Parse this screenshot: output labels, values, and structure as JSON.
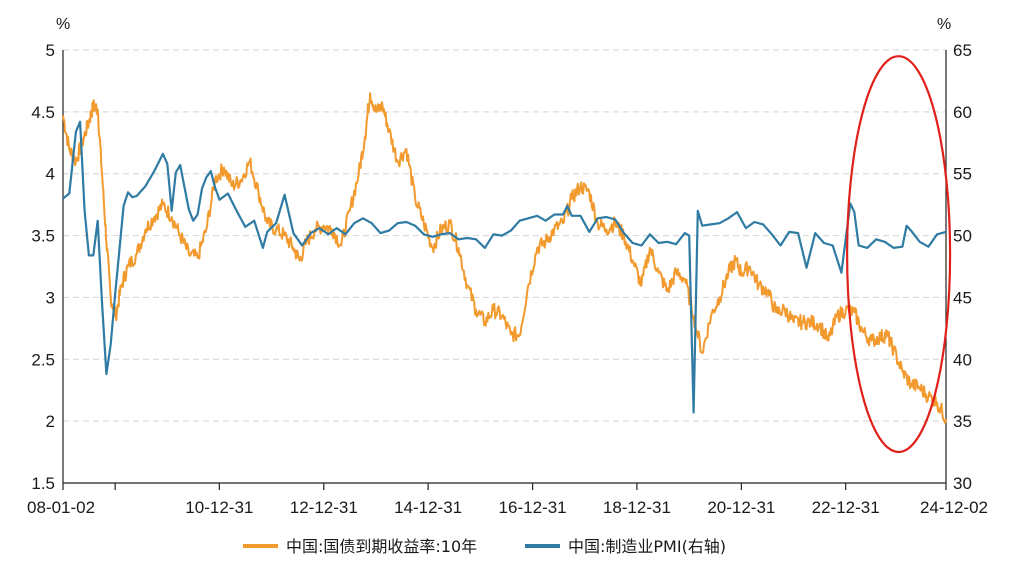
{
  "chart_data": {
    "type": "line",
    "left_axis": {
      "unit": "%",
      "ylim": [
        1.5,
        5
      ],
      "ticks": [
        "5",
        "4.5",
        "4",
        "3.5",
        "3",
        "2.5",
        "2",
        "1.5"
      ],
      "tick_values": [
        5,
        4.5,
        4,
        3.5,
        3,
        2.5,
        2,
        1.5
      ]
    },
    "right_axis": {
      "unit": "%",
      "ylim": [
        30,
        65
      ],
      "ticks": [
        "65",
        "60",
        "55",
        "50",
        "45",
        "40",
        "35",
        "30"
      ],
      "tick_values": [
        65,
        60,
        55,
        50,
        45,
        40,
        35,
        30
      ]
    },
    "x_axis": {
      "range": [
        "2008-01-02",
        "2024-12-02"
      ],
      "ticks": [
        {
          "date": "2008-01-02",
          "label": "08-01-02"
        },
        {
          "date": "2009-01-01",
          "label": ""
        },
        {
          "date": "2010-12-31",
          "label": "10-12-31"
        },
        {
          "date": "2012-12-31",
          "label": "12-12-31"
        },
        {
          "date": "2014-12-31",
          "label": "14-12-31"
        },
        {
          "date": "2016-12-31",
          "label": "16-12-31"
        },
        {
          "date": "2018-12-31",
          "label": "18-12-31"
        },
        {
          "date": "2020-12-31",
          "label": "20-12-31"
        },
        {
          "date": "2022-12-31",
          "label": "22-12-31"
        },
        {
          "date": "2024-12-02",
          "label": "24-12-02"
        }
      ]
    },
    "grid": "horizontal-dashed",
    "legend_position": "bottom",
    "series": [
      {
        "name": "中国:国债到期收益率:10年",
        "axis": "left",
        "color": "#F29A2E",
        "points": [
          [
            "2008-01-02",
            4.47
          ],
          [
            "2008-02-15",
            4.2
          ],
          [
            "2008-04-01",
            4.1
          ],
          [
            "2008-05-15",
            4.25
          ],
          [
            "2008-07-01",
            4.42
          ],
          [
            "2008-08-01",
            4.55
          ],
          [
            "2008-09-01",
            4.52
          ],
          [
            "2008-10-01",
            4.0
          ],
          [
            "2008-11-01",
            3.45
          ],
          [
            "2008-12-01",
            3.0
          ],
          [
            "2009-01-05",
            2.85
          ],
          [
            "2009-02-15",
            3.1
          ],
          [
            "2009-04-01",
            3.25
          ],
          [
            "2009-06-01",
            3.35
          ],
          [
            "2009-08-01",
            3.55
          ],
          [
            "2009-10-01",
            3.65
          ],
          [
            "2009-12-01",
            3.75
          ],
          [
            "2010-02-01",
            3.65
          ],
          [
            "2010-04-01",
            3.5
          ],
          [
            "2010-06-01",
            3.35
          ],
          [
            "2010-08-01",
            3.32
          ],
          [
            "2010-10-01",
            3.55
          ],
          [
            "2010-12-01",
            3.95
          ],
          [
            "2011-02-01",
            4.05
          ],
          [
            "2011-04-01",
            3.9
          ],
          [
            "2011-06-01",
            3.95
          ],
          [
            "2011-08-01",
            4.1
          ],
          [
            "2011-10-01",
            3.85
          ],
          [
            "2011-12-01",
            3.6
          ],
          [
            "2012-02-01",
            3.55
          ],
          [
            "2012-04-01",
            3.5
          ],
          [
            "2012-06-01",
            3.4
          ],
          [
            "2012-07-15",
            3.3
          ],
          [
            "2012-09-01",
            3.45
          ],
          [
            "2012-11-01",
            3.55
          ],
          [
            "2013-01-01",
            3.58
          ],
          [
            "2013-03-01",
            3.55
          ],
          [
            "2013-05-01",
            3.42
          ],
          [
            "2013-07-01",
            3.7
          ],
          [
            "2013-09-01",
            4.0
          ],
          [
            "2013-10-15",
            4.3
          ],
          [
            "2013-11-20",
            4.65
          ],
          [
            "2014-01-01",
            4.5
          ],
          [
            "2014-02-15",
            4.55
          ],
          [
            "2014-04-01",
            4.35
          ],
          [
            "2014-06-01",
            4.1
          ],
          [
            "2014-08-01",
            4.2
          ],
          [
            "2014-10-01",
            3.8
          ],
          [
            "2014-12-01",
            3.6
          ],
          [
            "2015-02-01",
            3.4
          ],
          [
            "2015-04-01",
            3.55
          ],
          [
            "2015-06-01",
            3.6
          ],
          [
            "2015-08-01",
            3.4
          ],
          [
            "2015-10-01",
            3.1
          ],
          [
            "2015-12-01",
            2.9
          ],
          [
            "2016-02-01",
            2.8
          ],
          [
            "2016-04-01",
            2.9
          ],
          [
            "2016-06-01",
            2.85
          ],
          [
            "2016-08-01",
            2.7
          ],
          [
            "2016-10-01",
            2.7
          ],
          [
            "2016-12-01",
            3.1
          ],
          [
            "2017-02-01",
            3.4
          ],
          [
            "2017-04-01",
            3.45
          ],
          [
            "2017-06-01",
            3.55
          ],
          [
            "2017-08-01",
            3.6
          ],
          [
            "2017-10-01",
            3.8
          ],
          [
            "2017-12-01",
            3.9
          ],
          [
            "2018-02-01",
            3.85
          ],
          [
            "2018-04-01",
            3.6
          ],
          [
            "2018-06-01",
            3.55
          ],
          [
            "2018-08-01",
            3.6
          ],
          [
            "2018-10-01",
            3.5
          ],
          [
            "2018-12-01",
            3.3
          ],
          [
            "2019-02-01",
            3.1
          ],
          [
            "2019-04-01",
            3.4
          ],
          [
            "2019-06-01",
            3.2
          ],
          [
            "2019-08-01",
            3.05
          ],
          [
            "2019-10-01",
            3.2
          ],
          [
            "2019-12-01",
            3.15
          ],
          [
            "2020-02-01",
            2.85
          ],
          [
            "2020-04-01",
            2.55
          ],
          [
            "2020-06-01",
            2.85
          ],
          [
            "2020-08-01",
            3.0
          ],
          [
            "2020-10-01",
            3.2
          ],
          [
            "2020-11-20",
            3.3
          ],
          [
            "2021-01-01",
            3.2
          ],
          [
            "2021-03-01",
            3.25
          ],
          [
            "2021-05-01",
            3.1
          ],
          [
            "2021-07-01",
            3.05
          ],
          [
            "2021-09-01",
            2.88
          ],
          [
            "2021-11-01",
            2.9
          ],
          [
            "2022-01-01",
            2.8
          ],
          [
            "2022-03-01",
            2.8
          ],
          [
            "2022-05-01",
            2.8
          ],
          [
            "2022-07-01",
            2.78
          ],
          [
            "2022-09-01",
            2.65
          ],
          [
            "2022-11-01",
            2.85
          ],
          [
            "2023-01-01",
            2.9
          ],
          [
            "2023-03-01",
            2.88
          ],
          [
            "2023-05-01",
            2.72
          ],
          [
            "2023-07-01",
            2.65
          ],
          [
            "2023-09-01",
            2.68
          ],
          [
            "2023-10-15",
            2.7
          ],
          [
            "2023-12-01",
            2.58
          ],
          [
            "2024-02-01",
            2.4
          ],
          [
            "2024-04-01",
            2.3
          ],
          [
            "2024-06-01",
            2.27
          ],
          [
            "2024-08-01",
            2.2
          ],
          [
            "2024-10-01",
            2.15
          ],
          [
            "2024-12-02",
            2.02
          ]
        ]
      },
      {
        "name": "中国:制造业PMI(右轴)",
        "axis": "right",
        "color": "#2F7BA3",
        "points": [
          [
            "2008-01-02",
            53.0
          ],
          [
            "2008-02-15",
            53.4
          ],
          [
            "2008-04-01",
            58.4
          ],
          [
            "2008-05-01",
            59.2
          ],
          [
            "2008-06-01",
            52.0
          ],
          [
            "2008-07-01",
            48.4
          ],
          [
            "2008-08-01",
            48.4
          ],
          [
            "2008-09-01",
            51.2
          ],
          [
            "2008-10-01",
            44.6
          ],
          [
            "2008-11-01",
            38.8
          ],
          [
            "2008-12-01",
            41.2
          ],
          [
            "2009-01-01",
            45.3
          ],
          [
            "2009-02-01",
            49.0
          ],
          [
            "2009-03-01",
            52.4
          ],
          [
            "2009-04-01",
            53.5
          ],
          [
            "2009-05-01",
            53.1
          ],
          [
            "2009-06-01",
            53.2
          ],
          [
            "2009-08-01",
            54.0
          ],
          [
            "2009-10-01",
            55.2
          ],
          [
            "2009-12-01",
            56.6
          ],
          [
            "2010-01-01",
            55.8
          ],
          [
            "2010-02-01",
            52.0
          ],
          [
            "2010-03-01",
            55.1
          ],
          [
            "2010-04-01",
            55.7
          ],
          [
            "2010-05-01",
            53.9
          ],
          [
            "2010-06-01",
            52.1
          ],
          [
            "2010-07-01",
            51.2
          ],
          [
            "2010-08-01",
            51.7
          ],
          [
            "2010-09-01",
            53.8
          ],
          [
            "2010-10-01",
            54.7
          ],
          [
            "2010-11-01",
            55.2
          ],
          [
            "2010-12-01",
            53.9
          ],
          [
            "2011-01-01",
            52.9
          ],
          [
            "2011-03-01",
            53.4
          ],
          [
            "2011-05-01",
            52.0
          ],
          [
            "2011-07-01",
            50.7
          ],
          [
            "2011-09-01",
            51.2
          ],
          [
            "2011-11-01",
            49.0
          ],
          [
            "2011-12-01",
            50.3
          ],
          [
            "2012-02-01",
            51.0
          ],
          [
            "2012-04-01",
            53.3
          ],
          [
            "2012-06-01",
            50.2
          ],
          [
            "2012-08-01",
            49.2
          ],
          [
            "2012-10-01",
            50.2
          ],
          [
            "2012-12-01",
            50.6
          ],
          [
            "2013-02-01",
            50.1
          ],
          [
            "2013-04-01",
            50.6
          ],
          [
            "2013-06-01",
            50.1
          ],
          [
            "2013-08-01",
            51.0
          ],
          [
            "2013-10-01",
            51.4
          ],
          [
            "2013-12-01",
            51.0
          ],
          [
            "2014-02-01",
            50.2
          ],
          [
            "2014-04-01",
            50.4
          ],
          [
            "2014-06-01",
            51.0
          ],
          [
            "2014-08-01",
            51.1
          ],
          [
            "2014-10-01",
            50.8
          ],
          [
            "2014-12-01",
            50.1
          ],
          [
            "2015-02-01",
            49.9
          ],
          [
            "2015-04-01",
            50.1
          ],
          [
            "2015-06-01",
            50.2
          ],
          [
            "2015-08-01",
            49.7
          ],
          [
            "2015-10-01",
            49.8
          ],
          [
            "2015-12-01",
            49.7
          ],
          [
            "2016-02-01",
            49.0
          ],
          [
            "2016-04-01",
            50.1
          ],
          [
            "2016-06-01",
            50.0
          ],
          [
            "2016-08-01",
            50.4
          ],
          [
            "2016-10-01",
            51.2
          ],
          [
            "2016-12-01",
            51.4
          ],
          [
            "2017-02-01",
            51.6
          ],
          [
            "2017-04-01",
            51.2
          ],
          [
            "2017-06-01",
            51.7
          ],
          [
            "2017-08-01",
            51.7
          ],
          [
            "2017-09-01",
            52.4
          ],
          [
            "2017-10-01",
            51.6
          ],
          [
            "2017-12-01",
            51.6
          ],
          [
            "2018-02-01",
            50.3
          ],
          [
            "2018-04-01",
            51.4
          ],
          [
            "2018-06-01",
            51.5
          ],
          [
            "2018-08-01",
            51.3
          ],
          [
            "2018-10-01",
            50.2
          ],
          [
            "2018-12-01",
            49.4
          ],
          [
            "2019-02-01",
            49.2
          ],
          [
            "2019-04-01",
            50.1
          ],
          [
            "2019-06-01",
            49.4
          ],
          [
            "2019-08-01",
            49.5
          ],
          [
            "2019-10-01",
            49.3
          ],
          [
            "2019-12-01",
            50.2
          ],
          [
            "2020-01-01",
            50.0
          ],
          [
            "2020-02-01",
            35.7
          ],
          [
            "2020-03-01",
            52.0
          ],
          [
            "2020-04-01",
            50.8
          ],
          [
            "2020-06-01",
            50.9
          ],
          [
            "2020-08-01",
            51.0
          ],
          [
            "2020-10-01",
            51.4
          ],
          [
            "2020-12-01",
            51.9
          ],
          [
            "2021-02-01",
            50.6
          ],
          [
            "2021-04-01",
            51.1
          ],
          [
            "2021-06-01",
            50.9
          ],
          [
            "2021-08-01",
            50.1
          ],
          [
            "2021-10-01",
            49.2
          ],
          [
            "2021-12-01",
            50.3
          ],
          [
            "2022-02-01",
            50.2
          ],
          [
            "2022-04-01",
            47.4
          ],
          [
            "2022-06-01",
            50.2
          ],
          [
            "2022-08-01",
            49.4
          ],
          [
            "2022-10-01",
            49.2
          ],
          [
            "2022-12-01",
            47.0
          ],
          [
            "2023-02-01",
            52.6
          ],
          [
            "2023-03-01",
            51.9
          ],
          [
            "2023-04-01",
            49.2
          ],
          [
            "2023-06-01",
            49.0
          ],
          [
            "2023-08-01",
            49.7
          ],
          [
            "2023-10-01",
            49.5
          ],
          [
            "2023-12-01",
            49.0
          ],
          [
            "2024-02-01",
            49.1
          ],
          [
            "2024-03-01",
            50.8
          ],
          [
            "2024-04-01",
            50.4
          ],
          [
            "2024-06-01",
            49.5
          ],
          [
            "2024-08-01",
            49.1
          ],
          [
            "2024-10-01",
            50.1
          ],
          [
            "2024-12-02",
            50.3
          ]
        ]
      }
    ],
    "annotation": {
      "type": "ellipse",
      "color": "#E0201B",
      "x_range": [
        "2023-01-10",
        "2024-12-31"
      ],
      "y_range_left": [
        1.75,
        4.95
      ]
    }
  }
}
